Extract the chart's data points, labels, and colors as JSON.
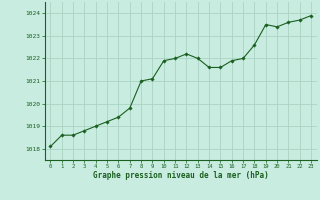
{
  "x": [
    0,
    1,
    2,
    3,
    4,
    5,
    6,
    7,
    8,
    9,
    10,
    11,
    12,
    13,
    14,
    15,
    16,
    17,
    18,
    19,
    20,
    21,
    22,
    23
  ],
  "y": [
    1018.1,
    1018.6,
    1018.6,
    1018.8,
    1019.0,
    1019.2,
    1019.4,
    1019.8,
    1021.0,
    1021.1,
    1021.9,
    1022.0,
    1022.2,
    1022.0,
    1021.6,
    1021.6,
    1021.9,
    1022.0,
    1022.6,
    1023.5,
    1023.4,
    1023.6,
    1023.7,
    1023.9
  ],
  "bg_color": "#c8ece0",
  "grid_color": "#aad4c4",
  "line_color": "#1a6020",
  "marker_color": "#1a6020",
  "xlabel": "Graphe pression niveau de la mer (hPa)",
  "xlabel_color": "#1a6020",
  "ylim": [
    1017.5,
    1024.5
  ],
  "yticks": [
    1018,
    1019,
    1020,
    1021,
    1022,
    1023,
    1024
  ],
  "xticks": [
    0,
    1,
    2,
    3,
    4,
    5,
    6,
    7,
    8,
    9,
    10,
    11,
    12,
    13,
    14,
    15,
    16,
    17,
    18,
    19,
    20,
    21,
    22,
    23
  ],
  "tick_color": "#1a6020",
  "spine_color": "#1a6020"
}
